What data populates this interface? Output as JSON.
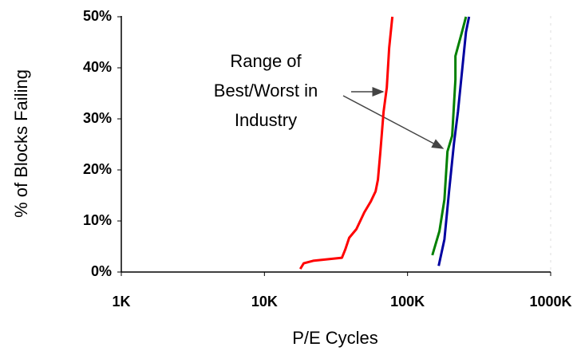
{
  "chart_data": {
    "type": "line",
    "x_label": "P/E Cycles",
    "y_label": "% of Blocks Failing",
    "annotation": [
      "Range of",
      "Best/Worst in",
      "Industry"
    ],
    "xscale": "log",
    "xlim": [
      1000,
      1000000
    ],
    "xticks": [
      {
        "value": 1000,
        "label": "1K"
      },
      {
        "value": 10000,
        "label": "10K"
      },
      {
        "value": 100000,
        "label": "100K"
      },
      {
        "value": 1000000,
        "label": "1000K"
      }
    ],
    "ylim": [
      0,
      50
    ],
    "yticks": [
      {
        "value": 0,
        "label": "0%"
      },
      {
        "value": 10,
        "label": "10%"
      },
      {
        "value": 20,
        "label": "20%"
      },
      {
        "value": 30,
        "label": "30%"
      },
      {
        "value": 40,
        "label": "40%"
      },
      {
        "value": 50,
        "label": "50%"
      }
    ],
    "series": [
      {
        "color": "#ff0000",
        "x": [
          17800,
          18800,
          21900,
          34800,
          36700,
          39100,
          43900,
          49900,
          55300,
          59800,
          62100,
          64600,
          68000,
          71600,
          74400,
          78300
        ],
        "values": [
          0.6,
          1.7,
          2.2,
          2.8,
          4.4,
          6.7,
          8.4,
          11.7,
          13.8,
          15.8,
          18.1,
          23.6,
          31.4,
          36.1,
          43.9,
          50
        ]
      },
      {
        "color": "#008000",
        "x": [
          149000,
          167000,
          181000,
          190000,
          205000,
          216000,
          216000,
          240000,
          256000
        ],
        "values": [
          3.3,
          8.0,
          14.2,
          23.6,
          26.7,
          37.7,
          42.3,
          47,
          50
        ]
      },
      {
        "color": "#0000a0",
        "x": [
          165000,
          181000,
          195000,
          211000,
          225000,
          240000,
          256000,
          269000
        ],
        "values": [
          1.2,
          6.4,
          15.8,
          25.2,
          31.4,
          39.2,
          47,
          50
        ]
      }
    ]
  }
}
